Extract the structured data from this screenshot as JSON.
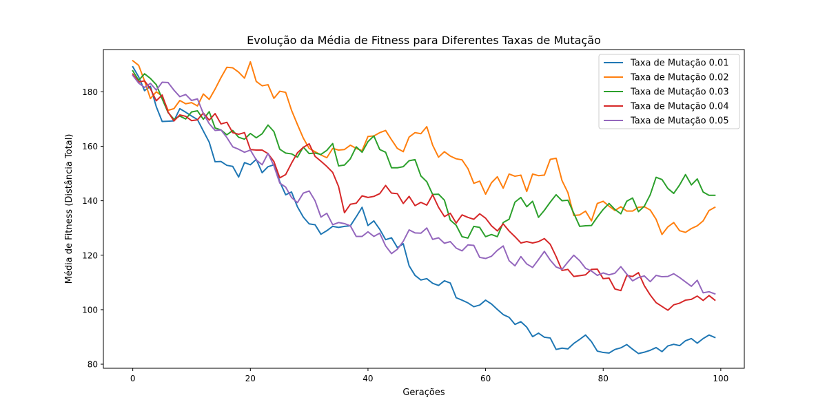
{
  "chart_data": {
    "type": "line",
    "title": "Evolução da Média de Fitness para Diferentes Taxas de Mutação",
    "xlabel": "Gerações",
    "ylabel": "Média de Fitness (Distância Total)",
    "xlim": [
      -5,
      104
    ],
    "ylim": [
      78.5,
      195.5
    ],
    "xticks": [
      0,
      20,
      40,
      60,
      80,
      100
    ],
    "yticks": [
      80,
      100,
      120,
      140,
      160,
      180
    ],
    "legend_position": "upper right",
    "grid": false,
    "x": [
      0,
      1,
      2,
      3,
      4,
      5,
      6,
      7,
      8,
      9,
      10,
      11,
      12,
      13,
      14,
      15,
      16,
      17,
      18,
      19,
      20,
      21,
      22,
      23,
      24,
      25,
      26,
      27,
      28,
      29,
      30,
      31,
      32,
      33,
      34,
      35,
      36,
      37,
      38,
      39,
      40,
      41,
      42,
      43,
      44,
      45,
      46,
      47,
      48,
      49,
      50,
      51,
      52,
      53,
      54,
      55,
      56,
      57,
      58,
      59,
      60,
      61,
      62,
      63,
      64,
      65,
      66,
      67,
      68,
      69,
      70,
      71,
      72,
      73,
      74,
      75,
      76,
      77,
      78,
      79,
      80,
      81,
      82,
      83,
      84,
      85,
      86,
      87,
      88,
      89,
      90,
      91,
      92,
      93,
      94,
      95,
      96,
      97,
      98,
      99
    ],
    "series": [
      {
        "name": "Taxa de Mutação 0.01",
        "color": "#1f77b4",
        "values": [
          189.2,
          185.5,
          180.4,
          182.0,
          174.5,
          169.1,
          169.2,
          169.3,
          173.8,
          172.5,
          171.1,
          169.8,
          165.6,
          161.5,
          154.3,
          154.4,
          153.0,
          152.6,
          148.7,
          154.0,
          153.2,
          155.2,
          150.3,
          152.5,
          153.2,
          147.0,
          142.2,
          143.2,
          137.8,
          134.0,
          131.5,
          131.2,
          127.7,
          129.0,
          130.6,
          130.2,
          130.6,
          130.8,
          134.1,
          137.6,
          130.9,
          132.6,
          129.5,
          125.7,
          126.4,
          122.8,
          124.2,
          116.1,
          112.6,
          110.9,
          111.4,
          109.7,
          108.9,
          110.6,
          109.8,
          104.4,
          103.5,
          102.5,
          101.1,
          101.7,
          103.5,
          102.1,
          100.1,
          98.2,
          97.2,
          94.6,
          95.6,
          93.6,
          90.1,
          91.4,
          89.9,
          89.6,
          85.4,
          85.9,
          85.6,
          87.6,
          89.1,
          90.7,
          88.3,
          84.8,
          84.3,
          84.1,
          85.4,
          86.0,
          87.2,
          85.5,
          83.9,
          84.4,
          85.1,
          86.1,
          84.6,
          86.7,
          87.3,
          86.8,
          88.6,
          89.4,
          87.7,
          89.4,
          90.7,
          89.8
        ]
      },
      {
        "name": "Taxa de Mutação 0.02",
        "color": "#ff7f0e",
        "values": [
          191.4,
          189.7,
          184.0,
          177.5,
          180.0,
          178.4,
          173.2,
          173.8,
          176.8,
          175.6,
          176.0,
          174.8,
          179.2,
          177.2,
          181.0,
          185.2,
          189.0,
          188.8,
          187.2,
          185.0,
          191.0,
          183.8,
          182.2,
          182.6,
          177.6,
          180.2,
          179.8,
          173.2,
          168.0,
          163.0,
          159.2,
          158.0,
          156.8,
          155.8,
          159.2,
          158.6,
          158.8,
          160.4,
          159.2,
          158.4,
          163.6,
          163.8,
          165.0,
          165.8,
          162.4,
          159.2,
          158.0,
          163.4,
          165.0,
          164.6,
          167.2,
          160.4,
          156.0,
          158.0,
          156.4,
          155.4,
          155.0,
          151.8,
          146.4,
          147.2,
          142.4,
          146.6,
          148.8,
          144.6,
          149.8,
          149.0,
          149.4,
          143.4,
          149.8,
          149.2,
          149.4,
          155.2,
          155.6,
          147.4,
          143.0,
          134.6,
          134.8,
          136.2,
          132.6,
          139.0,
          139.8,
          138.0,
          136.4,
          137.8,
          136.2,
          136.2,
          137.6,
          137.8,
          136.6,
          133.2,
          127.6,
          130.4,
          132.0,
          129.0,
          128.4,
          129.8,
          130.8,
          132.6,
          136.4,
          137.6
        ]
      },
      {
        "name": "Taxa de Mutação 0.03",
        "color": "#2ca02c",
        "values": [
          187.7,
          184.2,
          186.6,
          184.9,
          182.6,
          177.4,
          172.4,
          169.9,
          171.1,
          170.0,
          172.6,
          173.0,
          169.9,
          172.7,
          166.7,
          166.0,
          164.2,
          165.8,
          163.3,
          162.6,
          164.7,
          163.1,
          164.6,
          167.8,
          165.4,
          158.9,
          157.5,
          157.2,
          156.0,
          159.7,
          157.3,
          157.5,
          157.0,
          158.5,
          161.0,
          152.8,
          153.1,
          155.4,
          159.8,
          157.8,
          161.7,
          163.8,
          158.8,
          157.8,
          152.1,
          152.1,
          152.5,
          154.7,
          155.1,
          149.1,
          147.0,
          142.3,
          142.4,
          140.2,
          132.9,
          131.0,
          126.8,
          126.3,
          130.6,
          130.2,
          126.8,
          127.6,
          126.8,
          132.0,
          133.2,
          139.5,
          141.2,
          137.8,
          139.8,
          133.9,
          136.5,
          139.5,
          142.2,
          140.0,
          140.2,
          135.4,
          130.6,
          130.8,
          130.9,
          134.0,
          136.8,
          139.0,
          136.8,
          135.2,
          139.8,
          141.0,
          136.0,
          138.0,
          142.2,
          148.6,
          147.8,
          144.5,
          142.7,
          145.8,
          149.6,
          145.8,
          148.0,
          143.2,
          142.0,
          142.0
        ]
      },
      {
        "name": "Taxa de Mutação 0.04",
        "color": "#d62728",
        "values": [
          186.5,
          183.6,
          184.0,
          181.1,
          176.7,
          178.8,
          172.6,
          169.3,
          171.5,
          171.0,
          169.4,
          169.7,
          172.2,
          169.6,
          172.0,
          168.2,
          168.8,
          165.0,
          164.4,
          165.0,
          158.8,
          158.6,
          158.6,
          157.3,
          154.4,
          148.4,
          149.6,
          153.8,
          157.6,
          159.6,
          160.9,
          156.3,
          154.5,
          152.6,
          150.4,
          145.2,
          135.6,
          138.7,
          139.1,
          141.8,
          141.2,
          141.6,
          142.6,
          145.6,
          142.8,
          142.6,
          139.0,
          141.6,
          138.2,
          139.4,
          138.4,
          142.2,
          137.6,
          134.2,
          135.4,
          131.8,
          134.8,
          133.9,
          133.2,
          135.2,
          133.6,
          130.8,
          128.9,
          131.5,
          128.9,
          126.8,
          124.5,
          125.0,
          124.5,
          125.0,
          126.1,
          124.0,
          119.5,
          114.4,
          114.8,
          112.2,
          112.5,
          112.8,
          114.8,
          114.9,
          111.4,
          111.6,
          107.6,
          107.0,
          112.5,
          112.2,
          113.6,
          108.8,
          105.4,
          102.6,
          101.2,
          99.8,
          101.8,
          102.4,
          103.5,
          103.8,
          105.0,
          103.4,
          105.2,
          103.5
        ]
      },
      {
        "name": "Taxa de Mutação 0.05",
        "color": "#9467bd",
        "values": [
          186.0,
          183.2,
          181.6,
          183.1,
          180.6,
          183.5,
          183.4,
          180.6,
          178.2,
          179.0,
          176.8,
          177.4,
          172.0,
          168.3,
          165.8,
          166.0,
          163.2,
          159.8,
          158.9,
          157.8,
          158.6,
          155.0,
          153.2,
          157.4,
          152.8,
          146.5,
          145.0,
          141.2,
          139.3,
          142.8,
          143.6,
          140.0,
          134.0,
          135.4,
          131.2,
          132.0,
          131.6,
          130.8,
          126.9,
          126.9,
          128.6,
          126.9,
          128.1,
          123.4,
          120.6,
          122.2,
          125.1,
          129.3,
          128.2,
          128.1,
          130.0,
          125.8,
          126.4,
          124.4,
          125.0,
          122.6,
          121.6,
          123.8,
          123.6,
          119.2,
          118.8,
          119.6,
          121.8,
          123.4,
          118.0,
          116.1,
          119.5,
          116.8,
          115.5,
          118.4,
          121.4,
          118.2,
          115.7,
          114.8,
          117.5,
          120.0,
          118.0,
          115.2,
          114.2,
          112.6,
          113.5,
          112.8,
          113.4,
          115.8,
          113.1,
          110.6,
          111.8,
          112.4,
          110.3,
          112.6,
          112.1,
          112.2,
          113.2,
          111.8,
          110.2,
          108.6,
          110.8,
          106.2,
          106.6,
          105.8
        ]
      }
    ]
  }
}
